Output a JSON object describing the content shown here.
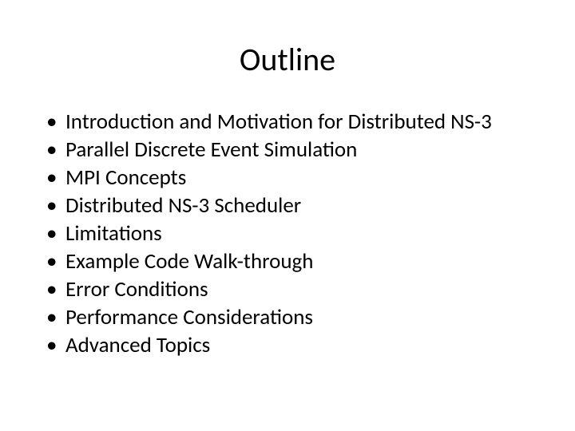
{
  "background_color": "#ffffff",
  "text_color": "#000000",
  "title": {
    "text": "Outline",
    "fontsize": 40,
    "weight": 400
  },
  "bullets": {
    "fontsize": 27,
    "marker": "•",
    "items": [
      "Introduction and Motivation for Distributed NS-3",
      "Parallel Discrete Event Simulation",
      "MPI Concepts",
      "Distributed NS-3 Scheduler",
      "Limitations",
      "Example Code Walk-through",
      "Error Conditions",
      "Performance Considerations",
      "Advanced Topics"
    ]
  }
}
